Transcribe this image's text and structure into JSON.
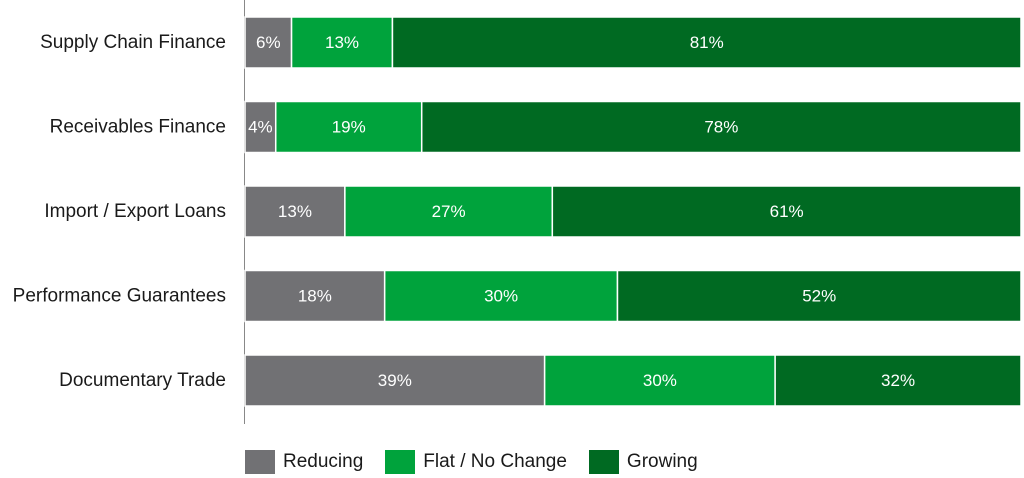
{
  "chart_data": {
    "type": "bar",
    "orientation": "horizontal",
    "stacked": true,
    "categories": [
      "Supply Chain Finance",
      "Receivables Finance",
      "Import / Export Loans",
      "Performance Guarantees",
      "Documentary Trade"
    ],
    "series": [
      {
        "name": "Reducing",
        "color": "#717174",
        "values": [
          6,
          4,
          13,
          18,
          39
        ]
      },
      {
        "name": "Flat / No Change",
        "color": "#00a33c",
        "values": [
          13,
          19,
          27,
          30,
          30
        ]
      },
      {
        "name": "Growing",
        "color": "#006a22",
        "values": [
          81,
          78,
          61,
          52,
          32
        ]
      }
    ],
    "value_suffix": "%",
    "legend_position": "bottom",
    "grid": false
  }
}
